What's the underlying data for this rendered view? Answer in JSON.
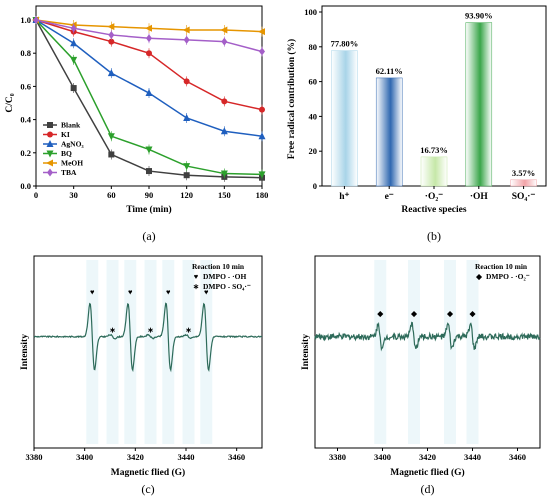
{
  "chart_data": [
    {
      "id": "a",
      "type": "line",
      "caption": "(a)",
      "xlabel": "Time (min)",
      "ylabel": "C/C₀",
      "xlim": [
        0,
        180
      ],
      "ylim": [
        0,
        1.0
      ],
      "xticks": [
        "0",
        "30",
        "60",
        "90",
        "120",
        "150",
        "180"
      ],
      "yticks": [
        "0.0",
        "0.2",
        "0.4",
        "0.6",
        "0.8",
        "1.0"
      ],
      "legend_position": "bottom-left",
      "x": [
        0,
        30,
        60,
        90,
        120,
        150,
        180
      ],
      "series": [
        {
          "name": "Blank",
          "color": "#404040",
          "marker": "square",
          "values": [
            1.0,
            0.59,
            0.19,
            0.09,
            0.065,
            0.055,
            0.05
          ]
        },
        {
          "name": "KI",
          "color": "#d62728",
          "marker": "circle",
          "values": [
            1.0,
            0.93,
            0.87,
            0.8,
            0.63,
            0.51,
            0.46
          ]
        },
        {
          "name": "AgNO₃",
          "color": "#1f5fbf",
          "marker": "triangle-up",
          "values": [
            1.0,
            0.86,
            0.68,
            0.56,
            0.41,
            0.33,
            0.3
          ]
        },
        {
          "name": "BQ",
          "color": "#2ca02c",
          "marker": "triangle-down",
          "values": [
            1.0,
            0.76,
            0.3,
            0.22,
            0.12,
            0.075,
            0.07
          ]
        },
        {
          "name": "MeOH",
          "color": "#e69500",
          "marker": "triangle-left",
          "values": [
            1.0,
            0.97,
            0.96,
            0.95,
            0.94,
            0.94,
            0.93
          ]
        },
        {
          "name": "TBA",
          "color": "#a45fc8",
          "marker": "diamond",
          "values": [
            1.0,
            0.95,
            0.91,
            0.89,
            0.88,
            0.87,
            0.81
          ]
        }
      ]
    },
    {
      "id": "b",
      "type": "bar",
      "caption": "(b)",
      "xlabel": "Reactive species",
      "ylabel": "Free radical contribution (%)",
      "ylim": [
        0,
        100
      ],
      "yticks": [
        "0",
        "20",
        "40",
        "60",
        "80",
        "100"
      ],
      "categories": [
        "h⁺",
        "e⁻",
        "·O₂⁻",
        "·OH",
        "SO₄·⁻"
      ],
      "values": [
        77.8,
        62.11,
        16.73,
        93.9,
        3.57
      ],
      "data_labels": [
        "77.80%",
        "62.11%",
        "16.73%",
        "93.90%",
        "3.57%"
      ],
      "colors": [
        "#a8d4e8",
        "#2f67b0",
        "#c6e8a8",
        "#3aa64a",
        "#f2a3a8"
      ]
    },
    {
      "id": "c",
      "type": "line",
      "caption": "(c)",
      "xlabel": "Magnetic flied (G)",
      "ylabel": "Intensity",
      "xlim": [
        3380,
        3470
      ],
      "xticks": [
        "3380",
        "3400",
        "3420",
        "3440",
        "3460"
      ],
      "line_color": "#2e6b5a",
      "legend": {
        "title": "Reaction 10 min",
        "entries": [
          {
            "symbol": "♥",
            "label": "DMPO - ·OH"
          },
          {
            "symbol": "∗",
            "label": "DMPO - SO₄·⁻"
          }
        ]
      },
      "peaks_OH": [
        3403,
        3418,
        3433,
        3448
      ],
      "peaks_SO4": [
        3411,
        3426,
        3441
      ]
    },
    {
      "id": "d",
      "type": "line",
      "caption": "(d)",
      "xlabel": "Magnetic flied (G)",
      "ylabel": "Intensity",
      "xlim": [
        3370,
        3470
      ],
      "xticks": [
        "3380",
        "3400",
        "3420",
        "3440",
        "3460"
      ],
      "line_color": "#2e6b5a",
      "legend": {
        "title": "Reaction 10 min",
        "entries": [
          {
            "symbol": "◆",
            "label": "DMPO - ·O₂⁻"
          }
        ]
      },
      "peaks_O2": [
        3399,
        3414,
        3430,
        3440
      ]
    }
  ]
}
